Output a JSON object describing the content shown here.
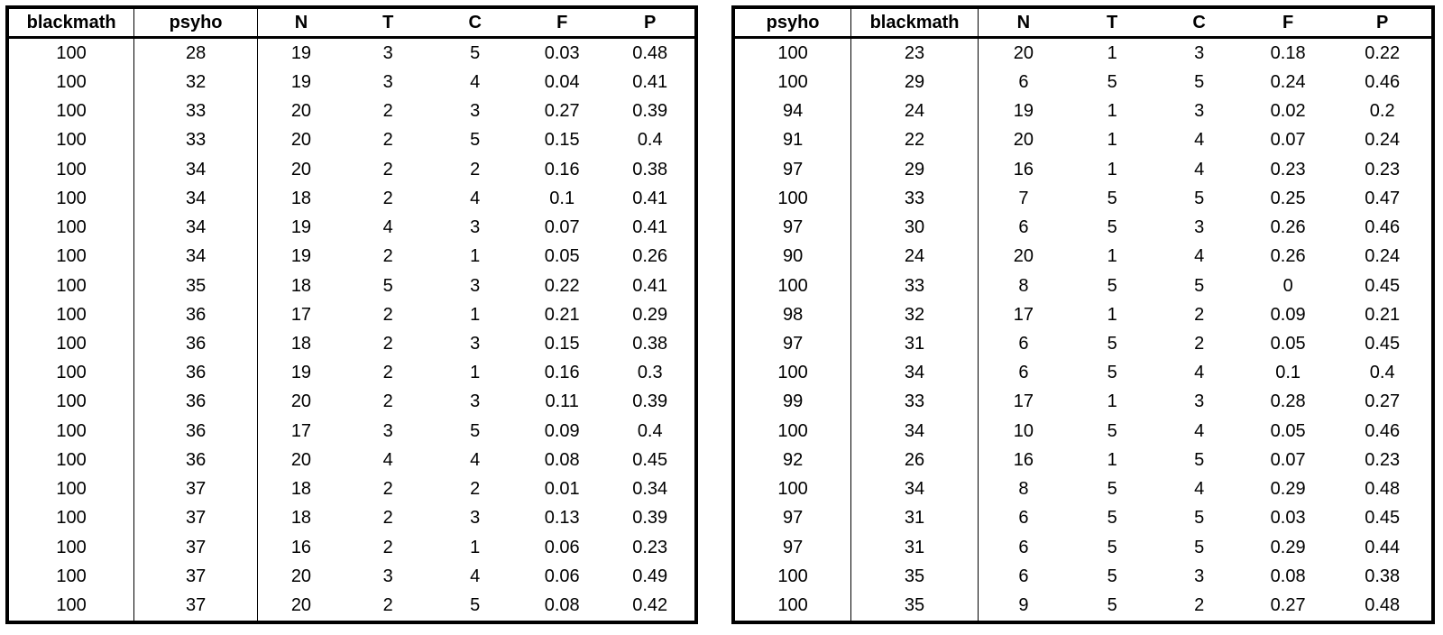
{
  "left_table": {
    "headers": [
      "blackmath",
      "psyho",
      "N",
      "T",
      "C",
      "F",
      "P"
    ],
    "rows": [
      [
        "100",
        "28",
        "19",
        "3",
        "5",
        "0.03",
        "0.48"
      ],
      [
        "100",
        "32",
        "19",
        "3",
        "4",
        "0.04",
        "0.41"
      ],
      [
        "100",
        "33",
        "20",
        "2",
        "3",
        "0.27",
        "0.39"
      ],
      [
        "100",
        "33",
        "20",
        "2",
        "5",
        "0.15",
        "0.4"
      ],
      [
        "100",
        "34",
        "20",
        "2",
        "2",
        "0.16",
        "0.38"
      ],
      [
        "100",
        "34",
        "18",
        "2",
        "4",
        "0.1",
        "0.41"
      ],
      [
        "100",
        "34",
        "19",
        "4",
        "3",
        "0.07",
        "0.41"
      ],
      [
        "100",
        "34",
        "19",
        "2",
        "1",
        "0.05",
        "0.26"
      ],
      [
        "100",
        "35",
        "18",
        "5",
        "3",
        "0.22",
        "0.41"
      ],
      [
        "100",
        "36",
        "17",
        "2",
        "1",
        "0.21",
        "0.29"
      ],
      [
        "100",
        "36",
        "18",
        "2",
        "3",
        "0.15",
        "0.38"
      ],
      [
        "100",
        "36",
        "19",
        "2",
        "1",
        "0.16",
        "0.3"
      ],
      [
        "100",
        "36",
        "20",
        "2",
        "3",
        "0.11",
        "0.39"
      ],
      [
        "100",
        "36",
        "17",
        "3",
        "5",
        "0.09",
        "0.4"
      ],
      [
        "100",
        "36",
        "20",
        "4",
        "4",
        "0.08",
        "0.45"
      ],
      [
        "100",
        "37",
        "18",
        "2",
        "2",
        "0.01",
        "0.34"
      ],
      [
        "100",
        "37",
        "18",
        "2",
        "3",
        "0.13",
        "0.39"
      ],
      [
        "100",
        "37",
        "16",
        "2",
        "1",
        "0.06",
        "0.23"
      ],
      [
        "100",
        "37",
        "20",
        "3",
        "4",
        "0.06",
        "0.49"
      ],
      [
        "100",
        "37",
        "20",
        "2",
        "5",
        "0.08",
        "0.42"
      ]
    ]
  },
  "right_table": {
    "headers": [
      "psyho",
      "blackmath",
      "N",
      "T",
      "C",
      "F",
      "P"
    ],
    "rows": [
      [
        "100",
        "23",
        "20",
        "1",
        "3",
        "0.18",
        "0.22"
      ],
      [
        "100",
        "29",
        "6",
        "5",
        "5",
        "0.24",
        "0.46"
      ],
      [
        "94",
        "24",
        "19",
        "1",
        "3",
        "0.02",
        "0.2"
      ],
      [
        "91",
        "22",
        "20",
        "1",
        "4",
        "0.07",
        "0.24"
      ],
      [
        "97",
        "29",
        "16",
        "1",
        "4",
        "0.23",
        "0.23"
      ],
      [
        "100",
        "33",
        "7",
        "5",
        "5",
        "0.25",
        "0.47"
      ],
      [
        "97",
        "30",
        "6",
        "5",
        "3",
        "0.26",
        "0.46"
      ],
      [
        "90",
        "24",
        "20",
        "1",
        "4",
        "0.26",
        "0.24"
      ],
      [
        "100",
        "33",
        "8",
        "5",
        "5",
        "0",
        "0.45"
      ],
      [
        "98",
        "32",
        "17",
        "1",
        "2",
        "0.09",
        "0.21"
      ],
      [
        "97",
        "31",
        "6",
        "5",
        "2",
        "0.05",
        "0.45"
      ],
      [
        "100",
        "34",
        "6",
        "5",
        "4",
        "0.1",
        "0.4"
      ],
      [
        "99",
        "33",
        "17",
        "1",
        "3",
        "0.28",
        "0.27"
      ],
      [
        "100",
        "34",
        "10",
        "5",
        "4",
        "0.05",
        "0.46"
      ],
      [
        "92",
        "26",
        "16",
        "1",
        "5",
        "0.07",
        "0.23"
      ],
      [
        "100",
        "34",
        "8",
        "5",
        "4",
        "0.29",
        "0.48"
      ],
      [
        "97",
        "31",
        "6",
        "5",
        "5",
        "0.03",
        "0.45"
      ],
      [
        "97",
        "31",
        "6",
        "5",
        "5",
        "0.29",
        "0.44"
      ],
      [
        "100",
        "35",
        "6",
        "5",
        "3",
        "0.08",
        "0.38"
      ],
      [
        "100",
        "35",
        "9",
        "5",
        "2",
        "0.27",
        "0.48"
      ]
    ]
  }
}
